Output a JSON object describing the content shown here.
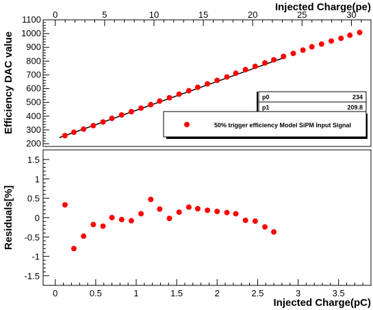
{
  "chart_data": [
    {
      "type": "scatter",
      "title": "",
      "ylabel": "Efficiency DAC value",
      "xlabel_top": "Injected Charge(pe)",
      "xlim": [
        -0.15,
        3.9
      ],
      "ylim": [
        180,
        1100
      ],
      "yticks": [
        200,
        300,
        400,
        500,
        600,
        700,
        800,
        900,
        1000,
        1100
      ],
      "top_xticks": [
        0,
        5,
        10,
        15,
        20,
        25,
        30
      ],
      "pe_per_pc": 8.2,
      "grid": false,
      "series": [
        {
          "name": "50% trigger efficiency Model SiPM Input Signal",
          "color": "#ff0000",
          "x": [
            0.12,
            0.23,
            0.35,
            0.47,
            0.59,
            0.7,
            0.82,
            0.94,
            1.06,
            1.18,
            1.29,
            1.41,
            1.53,
            1.65,
            1.76,
            1.88,
            2.0,
            2.12,
            2.23,
            2.35,
            2.47,
            2.59,
            2.7,
            2.82,
            2.94,
            3.06,
            3.17,
            3.29,
            3.41,
            3.53,
            3.64,
            3.76
          ],
          "y": [
            259,
            283,
            306,
            331,
            358,
            384,
            409,
            433,
            458,
            484,
            510,
            534,
            560,
            585,
            610,
            635,
            660,
            685,
            712,
            738,
            762,
            787,
            810,
            834,
            856,
            880,
            904,
            924,
            946,
            966,
            988,
            1008
          ]
        }
      ],
      "fit": {
        "x": [
          0.05,
          2.82
        ],
        "y": [
          244,
          824
        ]
      },
      "stats": {
        "p0": "234",
        "p1": "209.8"
      }
    },
    {
      "type": "scatter",
      "ylabel": "Residuals[%]",
      "xlabel": "Injected Charge(pC)",
      "xlim": [
        -0.15,
        3.9
      ],
      "ylim": [
        -1.75,
        1.75
      ],
      "yticks": [
        -1.5,
        -1,
        -0.5,
        0,
        0.5,
        1,
        1.5
      ],
      "xticks": [
        0,
        0.5,
        1,
        1.5,
        2,
        2.5,
        3,
        3.5
      ],
      "grid": false,
      "series": [
        {
          "color": "#ff0000",
          "x": [
            0.12,
            0.23,
            0.35,
            0.47,
            0.59,
            0.7,
            0.82,
            0.94,
            1.06,
            1.18,
            1.29,
            1.41,
            1.53,
            1.65,
            1.76,
            1.88,
            2.0,
            2.12,
            2.23,
            2.35,
            2.47,
            2.59,
            2.7
          ],
          "y": [
            0.33,
            -0.8,
            -0.48,
            -0.18,
            -0.22,
            0.0,
            -0.05,
            -0.08,
            0.1,
            0.47,
            0.22,
            -0.02,
            0.14,
            0.27,
            0.23,
            0.19,
            0.16,
            0.13,
            0.1,
            -0.07,
            -0.09,
            -0.24,
            -0.37
          ]
        }
      ]
    }
  ]
}
